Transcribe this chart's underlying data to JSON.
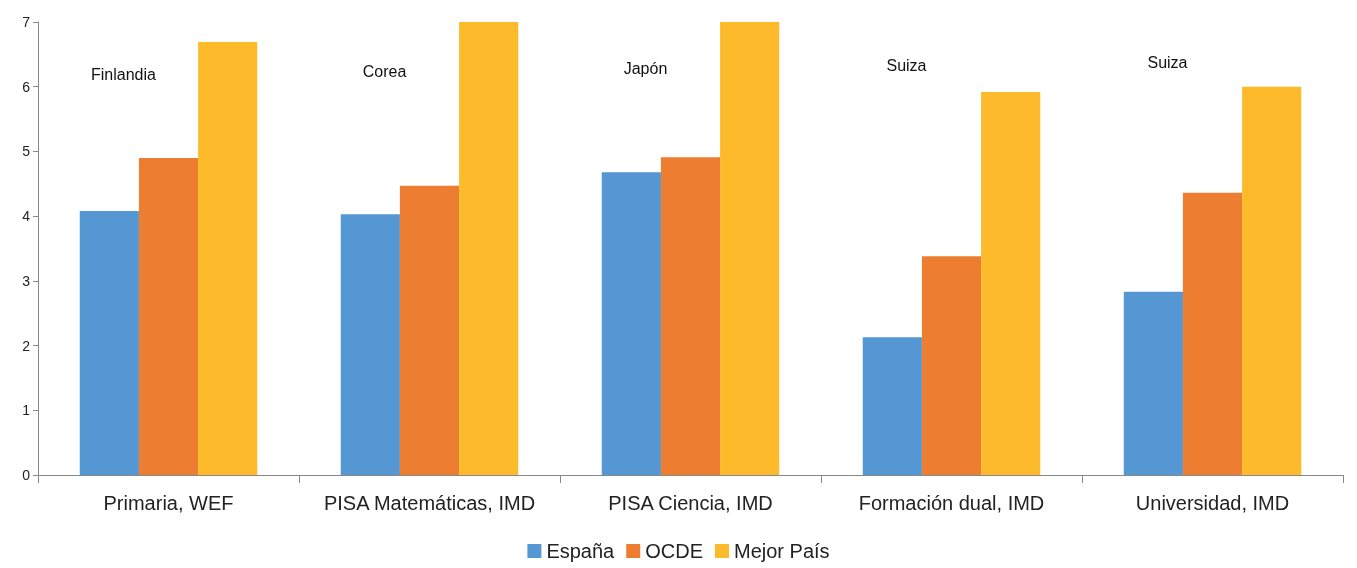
{
  "chart_data": {
    "type": "bar",
    "categories": [
      "Primaria, WEF",
      "PISA Matemáticas, IMD",
      "PISA Ciencia, IMD",
      "Formación dual, IMD",
      "Universidad, IMD"
    ],
    "series": [
      {
        "name": "España",
        "color": "#5497d3",
        "values": [
          4.08,
          4.03,
          4.68,
          2.13,
          2.83
        ]
      },
      {
        "name": "OCDE",
        "color": "#ed7d31",
        "values": [
          4.9,
          4.47,
          4.91,
          3.38,
          4.36
        ]
      },
      {
        "name": "Mejor País",
        "color": "#fdbb2c",
        "values": [
          6.69,
          7.0,
          7.0,
          5.92,
          6.0
        ]
      }
    ],
    "annotations": [
      "Finlandia",
      "Corea",
      "Japón",
      "Suiza",
      "Suiza"
    ],
    "ylim": [
      0,
      7
    ],
    "yticks": [
      0,
      1,
      2,
      3,
      4,
      5,
      6,
      7
    ],
    "grid": false,
    "legend": "bottom"
  }
}
